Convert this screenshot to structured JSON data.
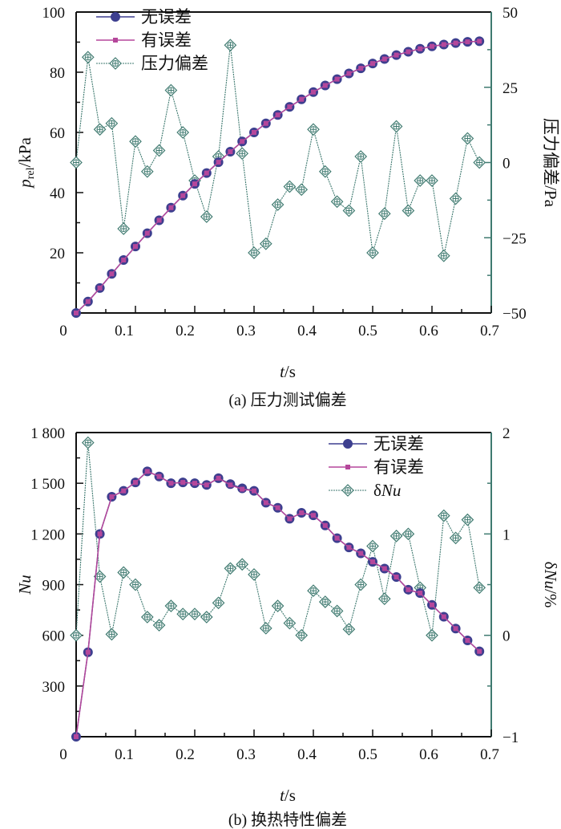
{
  "chart_data": [
    {
      "id": "a",
      "type": "line",
      "caption": "(a) 压力测试偏差",
      "xlabel": "t/s",
      "ylabel_left": "p_rel/kPa",
      "ylabel_left_main": "p",
      "ylabel_left_sub": "rel",
      "ylabel_left_unit": "/kPa",
      "ylabel_right": "压力偏差/Pa",
      "xlim": [
        0,
        0.7
      ],
      "ylim_left": [
        0,
        100
      ],
      "ylim_right": [
        -50,
        50
      ],
      "xticks": [
        "0",
        "0.1",
        "0.2",
        "0.3",
        "0.4",
        "0.5",
        "0.6",
        "0.7"
      ],
      "yticks_left": [
        "20",
        "40",
        "60",
        "80",
        "100"
      ],
      "yticks_right": [
        "-50",
        "-25",
        "0",
        "25",
        "50"
      ],
      "legend_position": "top-left",
      "x": [
        0.01,
        0.03,
        0.05,
        0.07,
        0.09,
        0.11,
        0.13,
        0.15,
        0.17,
        0.19,
        0.21,
        0.23,
        0.25,
        0.27,
        0.29,
        0.31,
        0.33,
        0.35,
        0.37,
        0.39,
        0.41,
        0.43,
        0.45,
        0.47,
        0.49,
        0.51,
        0.53,
        0.55,
        0.57,
        0.59,
        0.61,
        0.63,
        0.65,
        0.67,
        0.69
      ],
      "series": [
        {
          "name": "无误差",
          "axis": "left",
          "marker": "circle",
          "color": "#3d3f8f",
          "values": [
            0,
            3.8,
            8.3,
            13,
            17.6,
            22.1,
            26.5,
            30.8,
            35,
            39,
            42.9,
            46.5,
            50.1,
            53.6,
            57,
            60,
            63,
            65.8,
            68.5,
            71,
            73.4,
            75.6,
            77.7,
            79.6,
            81.3,
            82.9,
            84.4,
            85.7,
            86.8,
            87.8,
            88.6,
            89.2,
            89.7,
            90.1,
            90.3
          ]
        },
        {
          "name": "有误差",
          "axis": "left",
          "marker": "square",
          "color": "#b5479b",
          "values": [
            0,
            3.8,
            8.3,
            13,
            17.6,
            22.1,
            26.5,
            30.8,
            35,
            39,
            42.9,
            46.5,
            50.1,
            53.6,
            57,
            60,
            63,
            65.8,
            68.5,
            71,
            73.4,
            75.6,
            77.7,
            79.6,
            81.3,
            82.9,
            84.4,
            85.7,
            86.8,
            87.8,
            88.6,
            89.2,
            89.7,
            90.1,
            90.3
          ]
        },
        {
          "name": "压力偏差",
          "axis": "right",
          "marker": "crossed-diamond",
          "color": "#3f7a70",
          "values": [
            0,
            35,
            11,
            13,
            -22,
            7,
            -3,
            4,
            24,
            10,
            -6,
            -18,
            2,
            39,
            3,
            -30,
            -27,
            -14,
            -8,
            -9,
            11,
            -3,
            -13,
            -16,
            2,
            -30,
            -17,
            12,
            -16,
            -6,
            -6,
            -31,
            -12,
            8,
            0
          ]
        }
      ]
    },
    {
      "id": "b",
      "type": "line",
      "caption": "(b) 换热特性偏差",
      "xlabel": "t/s",
      "ylabel_left": "Nu",
      "ylabel_right": "δNu/%",
      "xlim": [
        0,
        0.7
      ],
      "ylim_left": [
        0,
        1800
      ],
      "ylim_right": [
        -1,
        2
      ],
      "xticks": [
        "0",
        "0.1",
        "0.2",
        "0.3",
        "0.4",
        "0.5",
        "0.6",
        "0.7"
      ],
      "yticks_left": [
        "300",
        "600",
        "900",
        "1 200",
        "1 500",
        "1 800"
      ],
      "yticks_right": [
        "-1",
        "0",
        "1",
        "2"
      ],
      "legend_position": "top-right",
      "x": [
        0.01,
        0.03,
        0.05,
        0.07,
        0.09,
        0.11,
        0.13,
        0.15,
        0.17,
        0.19,
        0.21,
        0.23,
        0.25,
        0.27,
        0.29,
        0.31,
        0.33,
        0.35,
        0.37,
        0.39,
        0.41,
        0.43,
        0.45,
        0.47,
        0.49,
        0.51,
        0.53,
        0.55,
        0.57,
        0.59,
        0.61,
        0.63,
        0.65,
        0.67,
        0.69
      ],
      "series": [
        {
          "name": "无误差",
          "axis": "left",
          "marker": "circle",
          "color": "#3d3f8f",
          "values": [
            0,
            500,
            1200,
            1420,
            1455,
            1505,
            1570,
            1540,
            1500,
            1505,
            1500,
            1490,
            1530,
            1495,
            1470,
            1455,
            1385,
            1355,
            1290,
            1325,
            1310,
            1250,
            1175,
            1120,
            1085,
            1035,
            995,
            945,
            870,
            850,
            780,
            710,
            640,
            570,
            505
          ]
        },
        {
          "name": "有误差",
          "axis": "left",
          "marker": "square",
          "color": "#b5479b",
          "values": [
            0,
            500,
            1200,
            1420,
            1455,
            1505,
            1570,
            1540,
            1500,
            1505,
            1500,
            1490,
            1530,
            1490,
            1465,
            1455,
            1385,
            1355,
            1290,
            1325,
            1310,
            1250,
            1175,
            1120,
            1085,
            1035,
            995,
            945,
            870,
            850,
            780,
            710,
            640,
            570,
            505
          ]
        },
        {
          "name": "δNu",
          "axis": "right",
          "marker": "crossed-diamond",
          "color": "#3f7a70",
          "values": [
            0,
            1.9,
            0.58,
            0.01,
            0.62,
            0.5,
            0.18,
            0.1,
            0.29,
            0.21,
            0.21,
            0.18,
            0.32,
            0.66,
            0.7,
            0.6,
            0.07,
            0.29,
            0.12,
            0.0,
            0.44,
            0.33,
            0.24,
            0.06,
            0.5,
            0.88,
            0.36,
            0.98,
            1.0,
            0.47,
            0.0,
            1.18,
            0.96,
            1.14,
            0.47
          ]
        }
      ]
    }
  ]
}
